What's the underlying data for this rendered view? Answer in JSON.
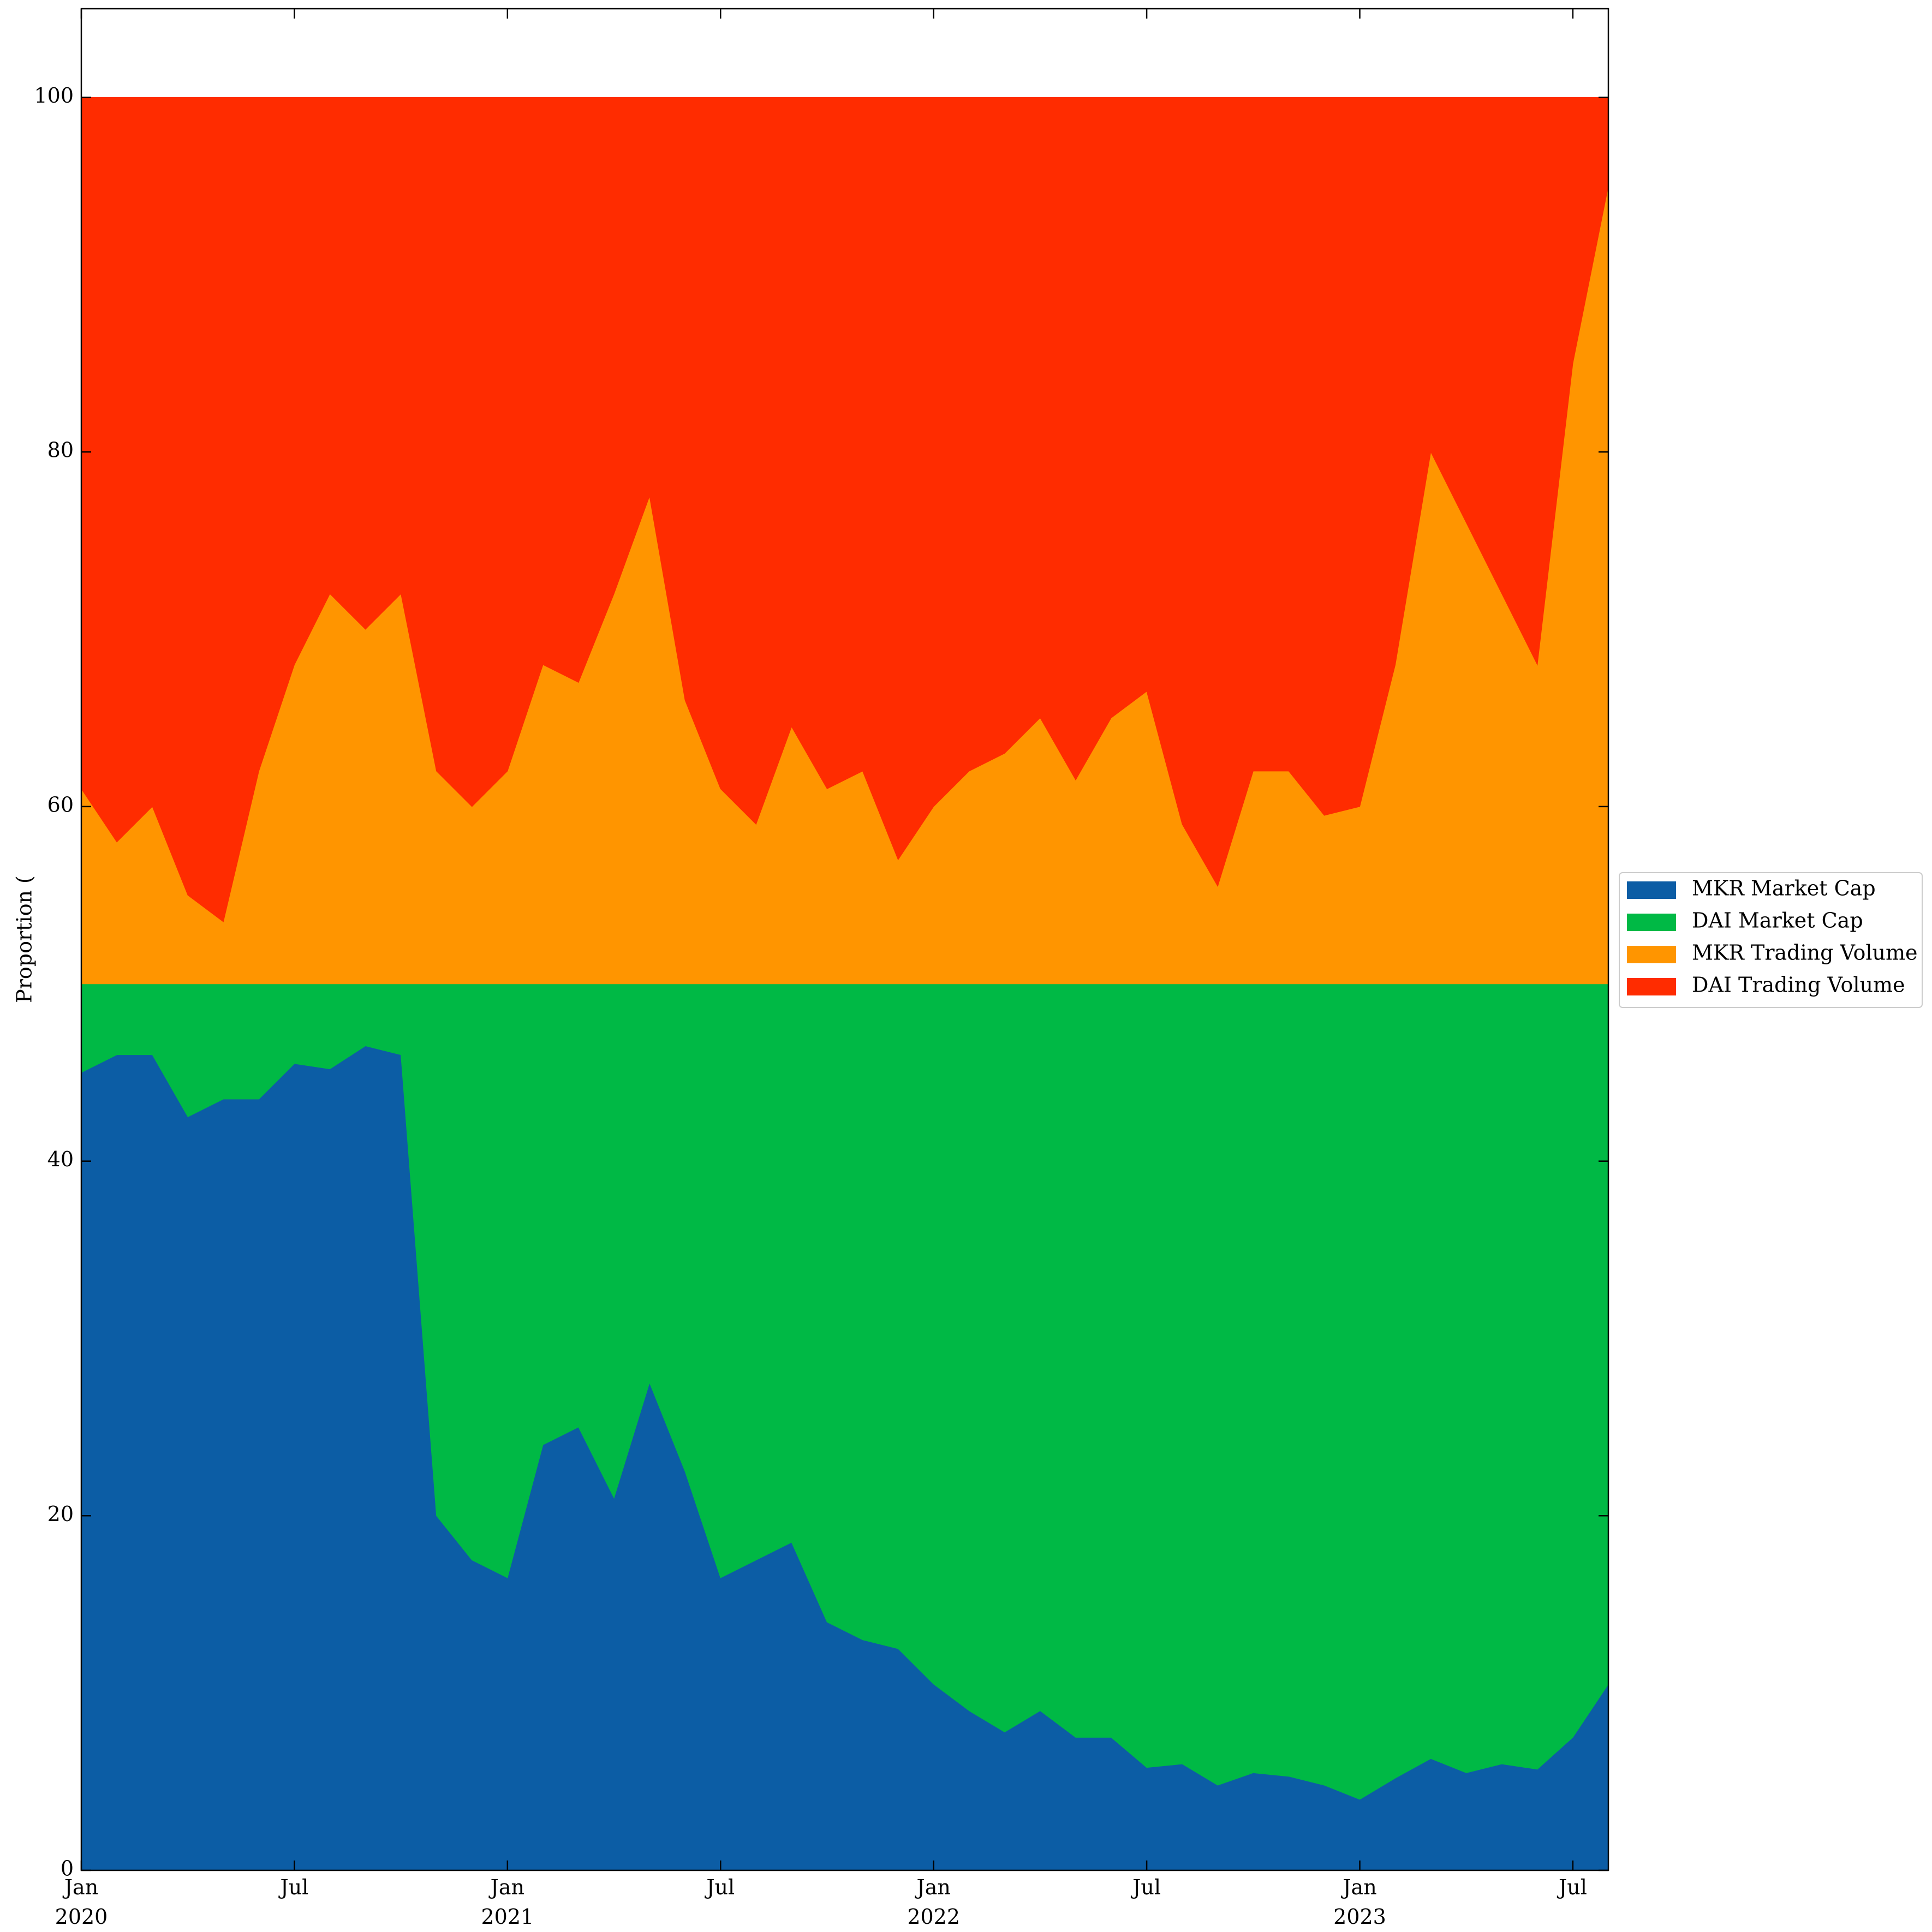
{
  "chart_data": {
    "type": "stackedarea",
    "y_label": "Proportion (",
    "x": [
      "2020-01",
      "2020-02",
      "2020-03",
      "2020-04",
      "2020-05",
      "2020-06",
      "2020-07",
      "2020-08",
      "2020-09",
      "2020-10",
      "2020-11",
      "2020-12",
      "2021-01",
      "2021-02",
      "2021-03",
      "2021-04",
      "2021-05",
      "2021-06",
      "2021-07",
      "2021-08",
      "2021-09",
      "2021-10",
      "2021-11",
      "2021-12",
      "2022-01",
      "2022-02",
      "2022-03",
      "2022-04",
      "2022-05",
      "2022-06",
      "2022-07",
      "2022-08",
      "2022-09",
      "2022-10",
      "2022-11",
      "2022-12",
      "2023-01",
      "2023-02",
      "2023-03",
      "2023-04",
      "2023-05",
      "2023-06",
      "2023-07",
      "2023-08"
    ],
    "series": [
      {
        "name": "MKR Market Cap",
        "color": "#0c5da5",
        "values": [
          45,
          46,
          46,
          42.5,
          43.5,
          43.5,
          45.5,
          45.2,
          46.5,
          46,
          20,
          17.5,
          16.5,
          24,
          25,
          21,
          27.5,
          22.5,
          16.5,
          17.5,
          18.5,
          14,
          13,
          12.5,
          10.5,
          9,
          7.8,
          9,
          7.5,
          7.5,
          5.8,
          6,
          4.8,
          5.5,
          5.3,
          4.8,
          4,
          5.2,
          6.3,
          5.5,
          6,
          5.7,
          7.5,
          10.5
        ]
      },
      {
        "name": "DAI Market Cap",
        "color": "#00b945",
        "values": [
          5,
          4,
          4,
          7.5,
          6.5,
          6.5,
          4.5,
          4.8,
          3.5,
          4,
          30,
          32.5,
          33.5,
          26,
          25,
          29,
          22.5,
          27.5,
          33.5,
          32.5,
          31.5,
          36,
          37,
          37.5,
          39.5,
          41,
          42.2,
          41,
          42.5,
          42.5,
          44.2,
          44,
          45.2,
          44.5,
          44.7,
          45.2,
          46,
          44.8,
          43.7,
          44.5,
          44,
          44.3,
          42.5,
          39.5
        ]
      },
      {
        "name": "MKR Trading Volume",
        "color": "#ff9500",
        "values": [
          11,
          8,
          10,
          5,
          3.5,
          12,
          18,
          22,
          20,
          22,
          12,
          10,
          12,
          18,
          17,
          22,
          27.5,
          16,
          11,
          9,
          14.5,
          11,
          12,
          7,
          10,
          12,
          13,
          15,
          11.5,
          15,
          16.5,
          9,
          5.5,
          12,
          12,
          9.5,
          10,
          18,
          30,
          26,
          22,
          18,
          35,
          45
        ]
      },
      {
        "name": "DAI Trading Volume",
        "color": "#ff2c00",
        "values": [
          39,
          42,
          40,
          45,
          46.5,
          38,
          32,
          28,
          30,
          28,
          38,
          40,
          38,
          32,
          33,
          28,
          22.5,
          34,
          39,
          41,
          35.5,
          39,
          38,
          43,
          40,
          38,
          37,
          35,
          38.5,
          35,
          33.5,
          41,
          44.5,
          38,
          38,
          40.5,
          40,
          32,
          20,
          24,
          28,
          32,
          15,
          5
        ]
      }
    ],
    "xlim": [
      "2020-01",
      "2023-08"
    ],
    "xticks": [
      {
        "value": "2020-01",
        "label": "Jan",
        "year": "2020"
      },
      {
        "value": "2020-07",
        "label": "Jul"
      },
      {
        "value": "2021-01",
        "label": "Jan",
        "year": "2021"
      },
      {
        "value": "2021-07",
        "label": "Jul"
      },
      {
        "value": "2022-01",
        "label": "Jan",
        "year": "2022"
      },
      {
        "value": "2022-07",
        "label": "Jul"
      },
      {
        "value": "2023-01",
        "label": "Jan",
        "year": "2023"
      },
      {
        "value": "2023-07",
        "label": "Jul"
      }
    ],
    "ylim": [
      0,
      105
    ],
    "yticks": [
      0,
      20,
      40,
      60,
      80,
      100
    ],
    "legend": "outside-right"
  }
}
